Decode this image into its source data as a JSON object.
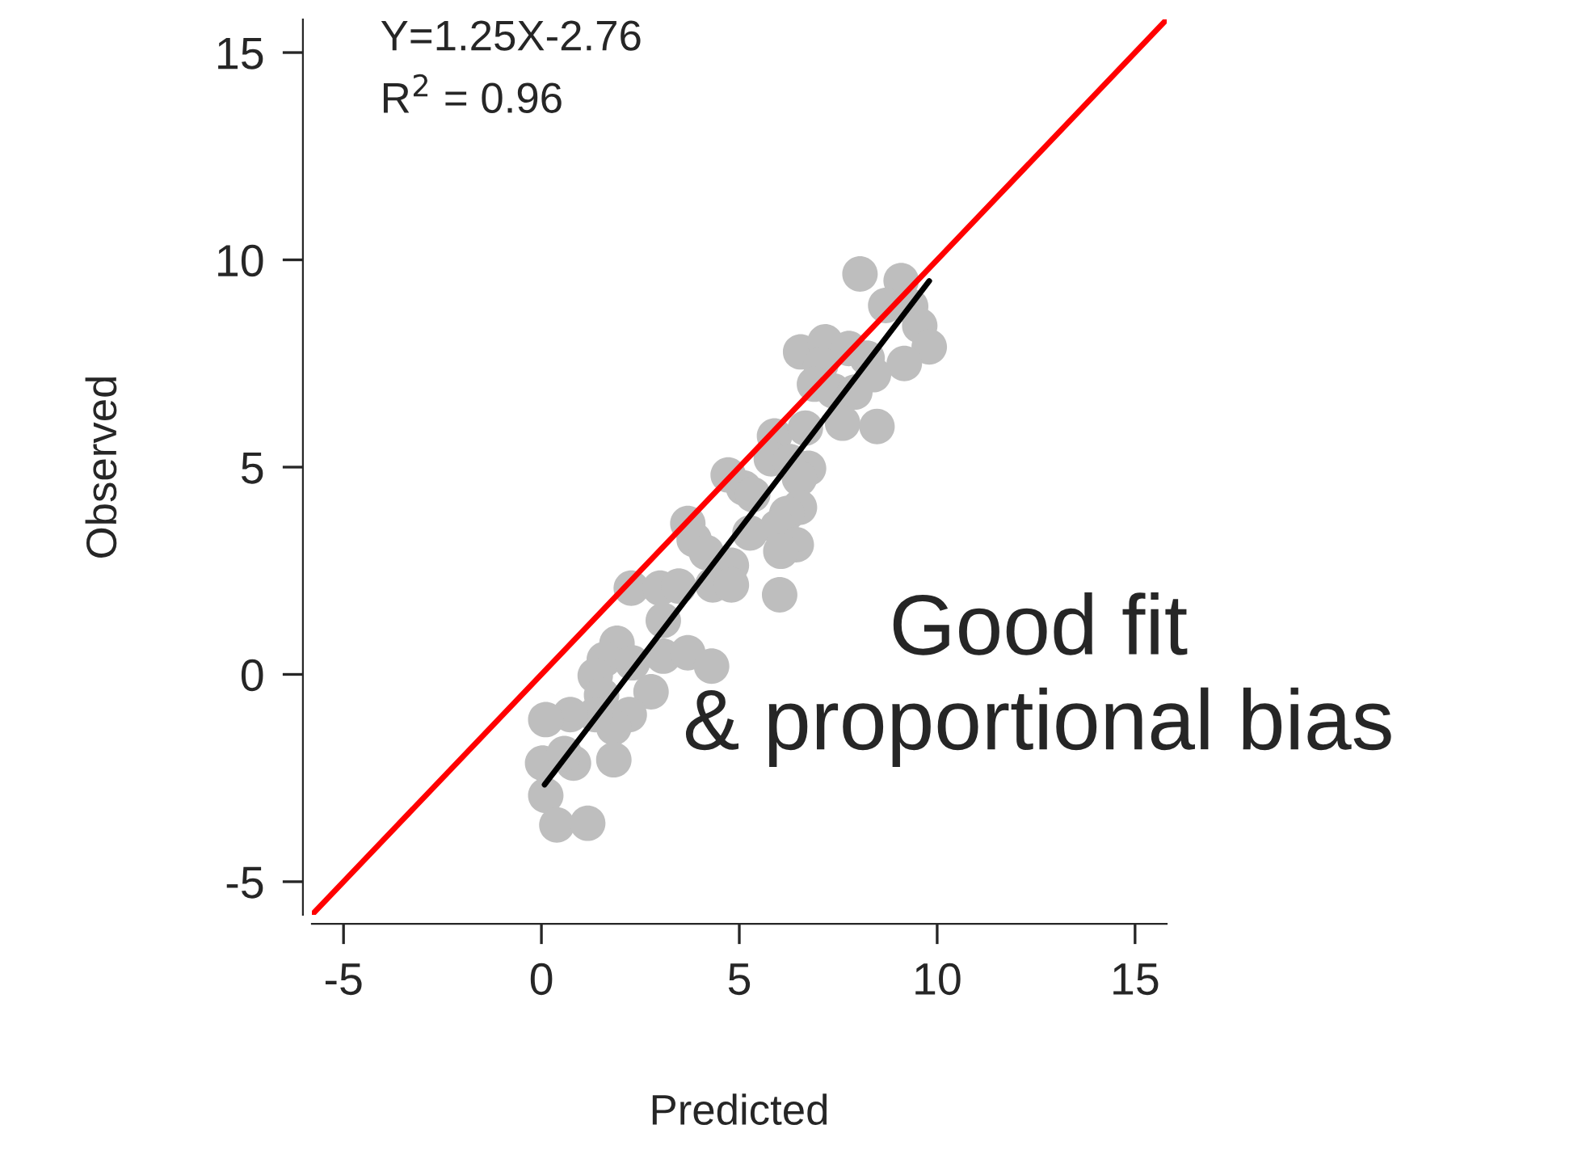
{
  "chart_data": {
    "type": "scatter",
    "xlabel": "Predicted",
    "ylabel": "Observed",
    "xlim": [
      -5.8,
      15.8
    ],
    "ylim": [
      -5.8,
      15.8
    ],
    "xticks": [
      -5,
      0,
      5,
      10,
      15
    ],
    "yticks": [
      -5,
      0,
      5,
      10,
      15
    ],
    "grid": false,
    "series": [
      {
        "marker": "circle",
        "color": "#bebebe",
        "x": [
          8.05,
          9.09,
          8.7,
          9.33,
          9.56,
          9.8,
          9.17,
          6.55,
          7.17,
          7.77,
          7.06,
          8.23,
          8.39,
          6.9,
          7.38,
          7.92,
          7.61,
          8.48,
          5.89,
          6.67,
          5.81,
          6.28,
          6.75,
          6.52,
          4.72,
          5.11,
          5.34,
          6.52,
          6.2,
          5.97,
          5.27,
          6.44,
          6.05,
          6.02,
          3.7,
          3.86,
          4.17,
          4.8,
          4.33,
          4.8,
          2.27,
          3.0,
          3.47,
          3.08,
          1.91,
          1.59,
          1.36,
          2.3,
          3.08,
          3.7,
          4.3,
          2.77,
          1.52,
          2.22,
          1.83,
          1.36,
          0.73,
          0.11,
          1.83,
          0.81,
          0.03,
          0.58,
          0.11,
          0.39,
          1.17
        ],
        "values": [
          9.66,
          9.5,
          8.9,
          8.88,
          8.41,
          7.9,
          7.5,
          7.78,
          8.02,
          7.86,
          7.47,
          7.63,
          7.23,
          7.0,
          6.84,
          6.81,
          6.06,
          5.98,
          5.75,
          5.94,
          5.2,
          5.13,
          4.97,
          4.73,
          4.81,
          4.5,
          4.34,
          4.03,
          3.88,
          3.56,
          3.41,
          3.13,
          2.97,
          1.92,
          3.64,
          3.25,
          2.94,
          2.63,
          2.16,
          2.16,
          2.08,
          2.08,
          2.13,
          1.3,
          0.75,
          0.36,
          -0.03,
          0.28,
          0.44,
          0.52,
          0.2,
          -0.42,
          -0.5,
          -0.97,
          -1.28,
          -0.97,
          -0.97,
          -1.09,
          -2.06,
          -2.14,
          -2.14,
          -1.91,
          -2.92,
          -3.63,
          -3.59
        ]
      },
      {
        "type": "line",
        "color": "#ff0000",
        "x": [
          -5.8,
          15.8
        ],
        "values": [
          -5.8,
          15.8
        ],
        "line_style": "solid"
      },
      {
        "type": "line",
        "color": "#000000",
        "x": [
          0.08,
          9.8
        ],
        "values": [
          -2.66,
          9.49
        ],
        "line_style": "solid"
      }
    ],
    "annotations": [
      "Y=1.25X-2.76",
      "R$^{2}$ = 0.96",
      "Good fit\n& proportional bias"
    ]
  }
}
